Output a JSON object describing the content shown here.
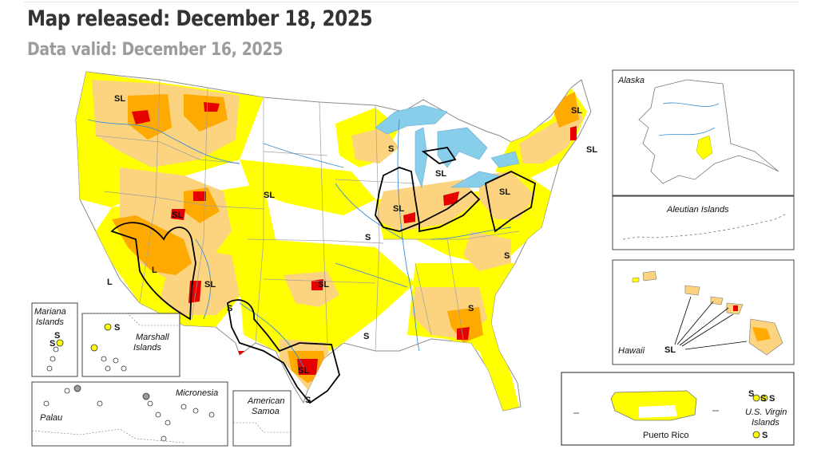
{
  "header": {
    "title": "Map released: December 18, 2025",
    "subtitle": "Data valid: December 16, 2025"
  },
  "colors": {
    "D0": "#ffff00",
    "D1": "#fcd37f",
    "D2": "#ffaa00",
    "D3": "#e60000",
    "D4": "#730000",
    "water": "#87ceeb",
    "boundary": "#9a9a9a",
    "impact_line": "#000000"
  },
  "map": {
    "impact_labels": {
      "nw": "SL",
      "ca_l": "L",
      "ca_l2": "L",
      "great_basin": "SL",
      "sw": "SL",
      "n_plains": "SL",
      "upper_mw": "S",
      "michigan": "SL",
      "ohio_valley": "SL",
      "mid_s": "S",
      "appalachia": "S",
      "southeast": "S",
      "s_plains": "SL",
      "w_texas": "S",
      "texas": "SL",
      "s_texas": "S",
      "lower_ms": "S",
      "nj_pa": "SL",
      "maine": "SL",
      "new_england": "SL"
    },
    "insets": {
      "alaska": {
        "title": "Alaska"
      },
      "aleutian": {
        "title": "Aleutian Islands"
      },
      "hawaii": {
        "title": "Hawaii",
        "impact": "SL"
      },
      "mariana": {
        "title_line1": "Mariana",
        "title_line2": "Islands",
        "s1": "S",
        "s2": "S"
      },
      "marshall": {
        "title_line1": "Marshall",
        "title_line2": "Islands",
        "s1": "S"
      },
      "micronesia": {
        "title": "Micronesia",
        "palau": "Palau"
      },
      "samoa": {
        "title_line1": "American",
        "title_line2": "Samoa"
      },
      "puerto_rico": {
        "title": "Puerto Rico",
        "usvi_line1": "U.S. Virgin",
        "usvi_line2": "Islands",
        "s1": "S",
        "s2": "S",
        "s3": "S",
        "s4": "S"
      }
    }
  }
}
